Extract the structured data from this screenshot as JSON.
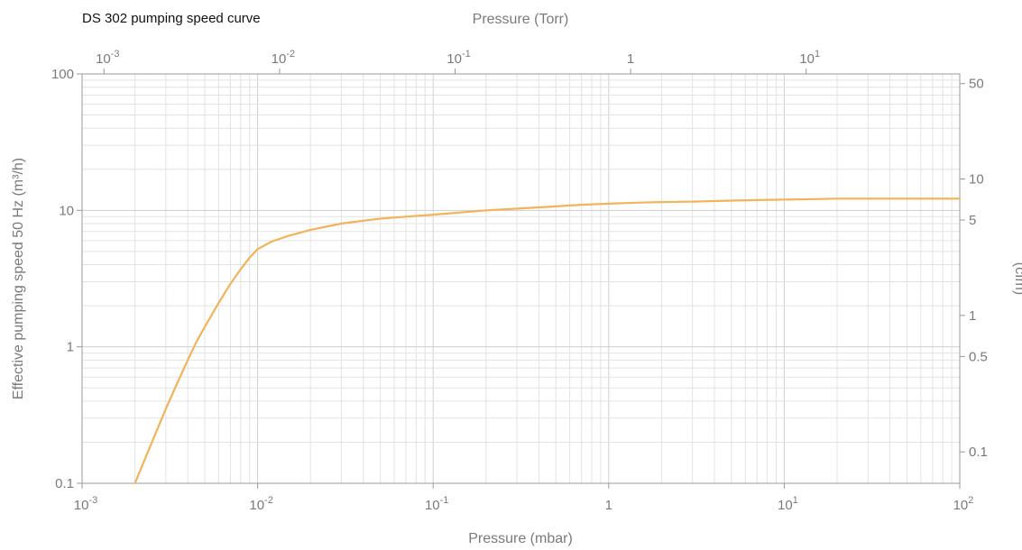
{
  "colors": {
    "curve": "#f2b35a",
    "grid_major": "#cfcfcf",
    "grid_minor": "#e3e3e3",
    "text": "#7a7a7a"
  },
  "chart_data": {
    "type": "line",
    "title": "DS 302 pumping speed curve",
    "xlabel": "Pressure (mbar)",
    "x2label": "Pressure (Torr)",
    "ylabel": "Effective pumping speed  50 Hz (m³/h)",
    "y2label": "(cfm)",
    "xscale": "log",
    "yscale": "log",
    "xlim": [
      0.001,
      100
    ],
    "ylim": [
      0.1,
      100
    ],
    "grid": true,
    "x_ticks": [
      {
        "value": 0.001,
        "base": "10",
        "exp": "-3"
      },
      {
        "value": 0.01,
        "base": "10",
        "exp": "-2"
      },
      {
        "value": 0.1,
        "base": "10",
        "exp": "-1"
      },
      {
        "value": 1,
        "base": "1",
        "exp": ""
      },
      {
        "value": 10,
        "base": "10",
        "exp": "1"
      },
      {
        "value": 100,
        "base": "10",
        "exp": "2"
      }
    ],
    "x2_ticks": [
      {
        "value": 0.001,
        "base": "10",
        "exp": "-3"
      },
      {
        "value": 0.01,
        "base": "10",
        "exp": "-2"
      },
      {
        "value": 0.1,
        "base": "10",
        "exp": "-1"
      },
      {
        "value": 1,
        "base": "1",
        "exp": ""
      },
      {
        "value": 10,
        "base": "10",
        "exp": "1"
      }
    ],
    "y_ticks": [
      {
        "value": 0.1,
        "label": "0.1"
      },
      {
        "value": 1,
        "label": "1"
      },
      {
        "value": 10,
        "label": "10"
      },
      {
        "value": 100,
        "label": "100"
      }
    ],
    "y2_ticks": [
      {
        "value": 0.1,
        "label": "0.1"
      },
      {
        "value": 0.5,
        "label": "0.5"
      },
      {
        "value": 1,
        "label": "1"
      },
      {
        "value": 5,
        "label": "5"
      },
      {
        "value": 10,
        "label": "10"
      },
      {
        "value": 50,
        "label": "50"
      }
    ],
    "series": [
      {
        "x": [
          0.002,
          0.0025,
          0.003,
          0.0035,
          0.004,
          0.0045,
          0.005,
          0.006,
          0.007,
          0.008,
          0.009,
          0.01,
          0.012,
          0.015,
          0.02,
          0.03,
          0.04,
          0.05,
          0.07,
          0.1,
          0.15,
          0.2,
          0.3,
          0.5,
          0.7,
          1,
          1.5,
          2,
          3,
          5,
          7,
          10,
          15,
          20,
          30,
          50,
          70,
          100
        ],
        "y": [
          0.1,
          0.2,
          0.35,
          0.55,
          0.8,
          1.1,
          1.4,
          2.1,
          2.9,
          3.7,
          4.5,
          5.2,
          5.9,
          6.5,
          7.2,
          8.0,
          8.4,
          8.7,
          9.0,
          9.3,
          9.7,
          10.0,
          10.3,
          10.7,
          11.0,
          11.2,
          11.4,
          11.5,
          11.6,
          11.8,
          11.9,
          12.0,
          12.1,
          12.2,
          12.2,
          12.2,
          12.2,
          12.2
        ]
      }
    ]
  }
}
